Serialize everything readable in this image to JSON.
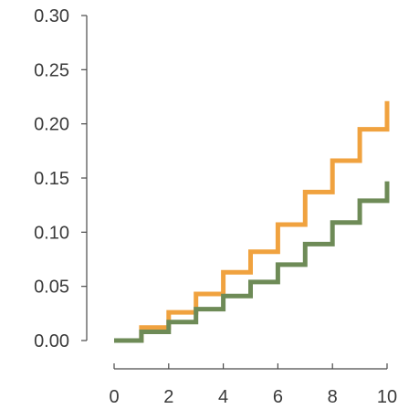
{
  "chart_data": {
    "type": "line",
    "step": "post",
    "title": "",
    "xlabel": "",
    "ylabel": "",
    "xlim": [
      0,
      10
    ],
    "ylim": [
      0,
      0.3
    ],
    "x_ticks": [
      0,
      2,
      4,
      6,
      8,
      10
    ],
    "y_ticks": [
      0.0,
      0.05,
      0.1,
      0.15,
      0.2,
      0.25,
      0.3
    ],
    "x_tick_labels": [
      "0",
      "2",
      "4",
      "6",
      "8",
      "10"
    ],
    "y_tick_labels": [
      "0.00",
      "0.05",
      "0.10",
      "0.15",
      "0.20",
      "0.25",
      "0.30"
    ],
    "grid": false,
    "legend": "none",
    "x": [
      0,
      1,
      2,
      3,
      4,
      5,
      6,
      7,
      8,
      9,
      10
    ],
    "series": [
      {
        "color": "#f0a23f",
        "values": [
          0.0,
          0.012,
          0.026,
          0.043,
          0.063,
          0.082,
          0.107,
          0.137,
          0.166,
          0.195,
          0.221
        ]
      },
      {
        "color": "#6e8b57",
        "values": [
          0.0,
          0.008,
          0.017,
          0.029,
          0.041,
          0.054,
          0.07,
          0.089,
          0.109,
          0.129,
          0.147
        ]
      }
    ]
  }
}
